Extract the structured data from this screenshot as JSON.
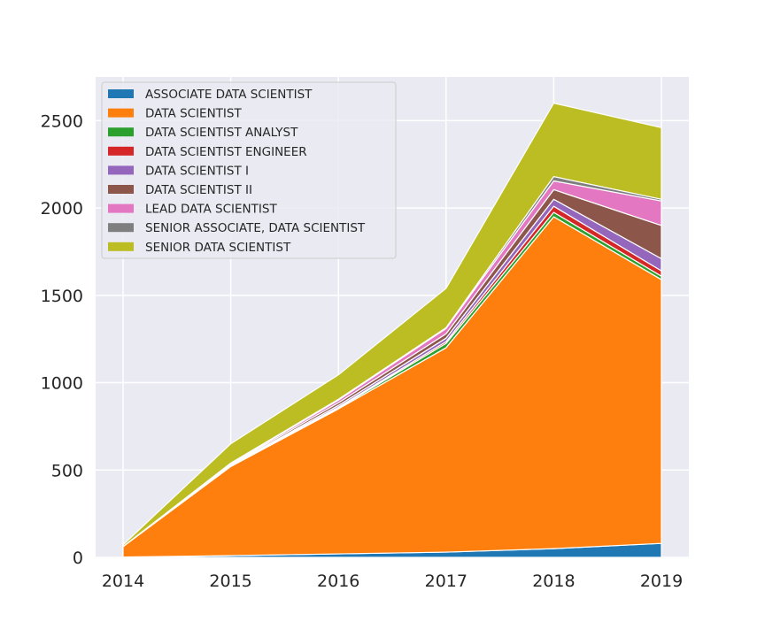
{
  "chart_data": {
    "type": "area",
    "stacked": true,
    "title": "",
    "xlabel": "",
    "ylabel": "",
    "x": [
      "2014",
      "2015",
      "2016",
      "2017",
      "2018",
      "2019"
    ],
    "xlim": [
      2014,
      2019
    ],
    "ylim": [
      0,
      2750
    ],
    "yticks": [
      0,
      500,
      1000,
      1500,
      2000,
      2500
    ],
    "grid": true,
    "legend_position": "top-left",
    "background": "#eaeaf2",
    "series": [
      {
        "name": "ASSOCIATE DATA SCIENTIST",
        "color": "#1f77b4",
        "values": [
          2,
          10,
          20,
          30,
          50,
          80
        ]
      },
      {
        "name": "DATA SCIENTIST",
        "color": "#ff7f0e",
        "values": [
          60,
          510,
          830,
          1170,
          1900,
          1510
        ]
      },
      {
        "name": "DATA SCIENTIST ANALYST",
        "color": "#2ca02c",
        "values": [
          0,
          2,
          5,
          25,
          25,
          20
        ]
      },
      {
        "name": "DATA SCIENTIST ENGINEER",
        "color": "#d62728",
        "values": [
          0,
          2,
          5,
          10,
          35,
          30
        ]
      },
      {
        "name": "DATA SCIENTIST I",
        "color": "#9467bd",
        "values": [
          0,
          3,
          10,
          20,
          40,
          70
        ]
      },
      {
        "name": "DATA SCIENTIST II",
        "color": "#8c564b",
        "values": [
          0,
          5,
          15,
          25,
          55,
          190
        ]
      },
      {
        "name": "LEAD DATA SCIENTIST",
        "color": "#e377c2",
        "values": [
          0,
          5,
          15,
          30,
          50,
          140
        ]
      },
      {
        "name": "SENIOR ASSOCIATE, DATA SCIENTIST",
        "color": "#7f7f7f",
        "values": [
          0,
          3,
          5,
          5,
          25,
          10
        ]
      },
      {
        "name": "SENIOR DATA SCIENTIST",
        "color": "#bcbd22",
        "values": [
          10,
          110,
          140,
          225,
          420,
          410
        ]
      }
    ]
  }
}
